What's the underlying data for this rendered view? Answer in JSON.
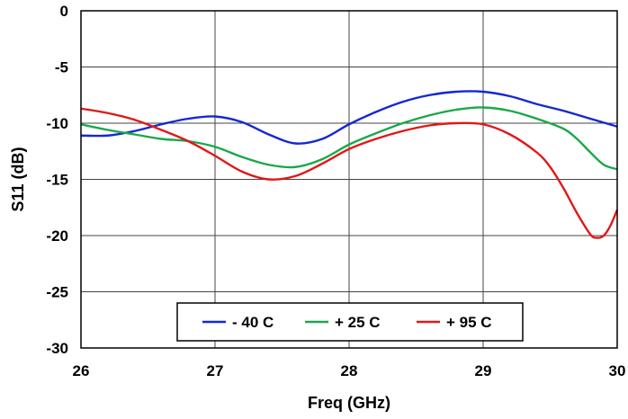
{
  "chart_data": {
    "type": "line",
    "title": "",
    "xlabel": "Freq (GHz)",
    "ylabel": "S11 (dB)",
    "xlim": [
      26,
      30
    ],
    "ylim": [
      -30,
      0
    ],
    "xticks": [
      26,
      27,
      28,
      29,
      30
    ],
    "yticks": [
      0,
      -5,
      -10,
      -15,
      -20,
      -25,
      -30
    ],
    "xtick_labels": [
      "26",
      "27",
      "28",
      "29",
      "30"
    ],
    "ytick_labels": [
      "0",
      "-5",
      "-10",
      "-15",
      "-20",
      "-25",
      "-30"
    ],
    "grid": true,
    "legend": "bottom-center",
    "series": [
      {
        "name": "- 40 C",
        "color": "#1428d2",
        "x": [
          26.0,
          26.2,
          26.4,
          26.6,
          26.8,
          27.0,
          27.2,
          27.4,
          27.6,
          27.8,
          28.0,
          28.2,
          28.4,
          28.6,
          28.8,
          29.0,
          29.2,
          29.4,
          29.6,
          29.8,
          30.0
        ],
        "y": [
          -11.1,
          -11.1,
          -10.7,
          -10.1,
          -9.6,
          -9.4,
          -9.9,
          -11.0,
          -11.8,
          -11.4,
          -10.1,
          -9.0,
          -8.1,
          -7.5,
          -7.2,
          -7.2,
          -7.6,
          -8.3,
          -8.9,
          -9.6,
          -10.3
        ]
      },
      {
        "name": "+ 25 C",
        "color": "#1aa84a",
        "x": [
          26.0,
          26.2,
          26.4,
          26.6,
          26.8,
          27.0,
          27.2,
          27.4,
          27.6,
          27.8,
          28.0,
          28.2,
          28.4,
          28.6,
          28.8,
          29.0,
          29.2,
          29.4,
          29.6,
          29.7,
          29.8,
          29.9,
          30.0
        ],
        "y": [
          -10.1,
          -10.6,
          -11.0,
          -11.4,
          -11.6,
          -12.1,
          -13.0,
          -13.7,
          -13.9,
          -13.2,
          -11.9,
          -10.9,
          -10.0,
          -9.3,
          -8.8,
          -8.6,
          -8.9,
          -9.6,
          -10.5,
          -11.4,
          -12.6,
          -13.7,
          -14.1
        ]
      },
      {
        "name": "+ 95 C",
        "color": "#e01818",
        "x": [
          26.0,
          26.2,
          26.4,
          26.6,
          26.8,
          27.0,
          27.2,
          27.4,
          27.6,
          27.8,
          28.0,
          28.2,
          28.4,
          28.6,
          28.8,
          29.0,
          29.2,
          29.4,
          29.5,
          29.6,
          29.7,
          29.8,
          29.85,
          29.9,
          29.95,
          30.0
        ],
        "y": [
          -8.7,
          -9.1,
          -9.7,
          -10.6,
          -11.6,
          -12.9,
          -14.3,
          -15.0,
          -14.7,
          -13.6,
          -12.3,
          -11.4,
          -10.7,
          -10.2,
          -10.0,
          -10.1,
          -11.0,
          -12.6,
          -13.9,
          -15.8,
          -18.0,
          -19.9,
          -20.2,
          -20.0,
          -19.1,
          -17.7
        ]
      }
    ]
  }
}
